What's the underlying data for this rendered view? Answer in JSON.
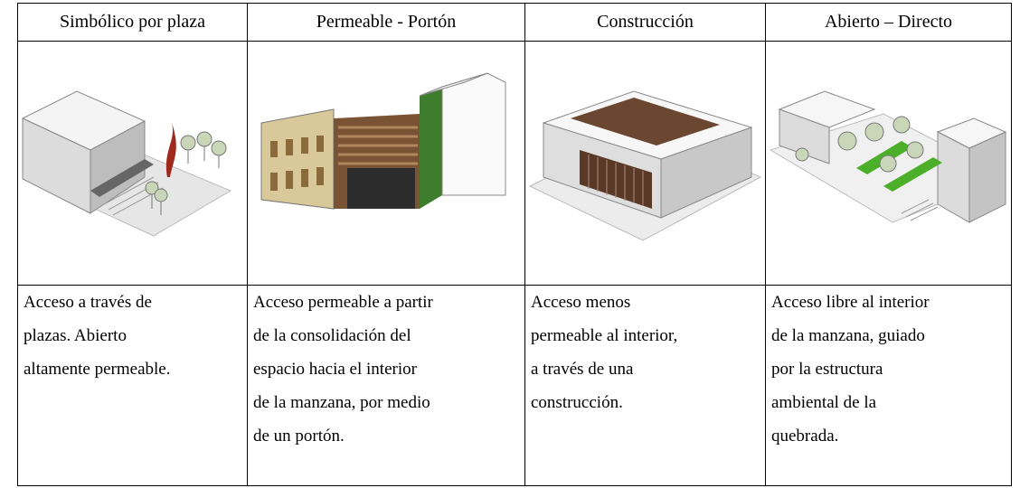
{
  "table": {
    "header": [
      "Simbólico por plaza",
      "Permeable - Portón",
      "Construcción",
      "Abierto – Directo"
    ],
    "descriptions": [
      [
        "Acceso a través de",
        "plazas. Abierto",
        "altamente permeable."
      ],
      [
        "Acceso permeable a partir",
        "de la consolidación del",
        "espacio hacia el interior",
        "de la manzana, por medio",
        "de un portón."
      ],
      [
        "Acceso menos",
        "permeable al interior,",
        "a través de una",
        "construcción."
      ],
      [
        "Acceso libre al interior",
        "de la manzana, guiado",
        "por la estructura",
        "ambiental de la",
        "quebrada."
      ]
    ]
  }
}
